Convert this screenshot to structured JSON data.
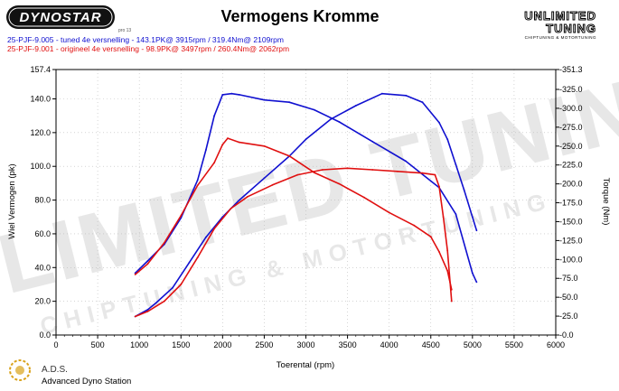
{
  "header": {
    "title": "Vermogens Kromme",
    "brand_left": "DYNOSTAR",
    "brand_left_small": "pro 13",
    "brand_right_line1": "UNLIMITED",
    "brand_right_line2": "TUNING",
    "brand_right_sub": "CHIPTUNING & MOTORTUNING",
    "run1": "25-PJF-9.005 - tuned 4e versnelling  - 143.1PK@ 3915rpm / 319.4Nm@ 2109rpm",
    "run2": "25-PJF-9.001 - origineel 4e versnelling  - 98.9PK@ 3497rpm / 260.4Nm@ 2062rpm"
  },
  "footer": {
    "ads": "A.D.S.",
    "station": "Advanced Dyno Station"
  },
  "watermark": {
    "line1": "UNLIMITED TUNING",
    "line2": "CHIPTUNING & MOTORTUNING"
  },
  "colors": {
    "tuned": "#1010d0",
    "original": "#e01010",
    "axis": "#000000",
    "grid": "#bbbbbb"
  },
  "chart_data": {
    "type": "line",
    "title": "Vermogens Kromme",
    "xlabel": "Toerental (rpm)",
    "ylabel": "Wiel Vermogen (pk)",
    "y2label": "Torque (Nm)",
    "xlim": [
      0,
      6000
    ],
    "ylim": [
      0,
      157.4
    ],
    "y2lim": [
      0,
      351.3
    ],
    "x_ticks": [
      0,
      500,
      1000,
      1500,
      2000,
      2500,
      3000,
      3500,
      4000,
      4500,
      5000,
      5500,
      6000
    ],
    "x_tick_labels": [
      "0",
      "500",
      "1000",
      "1500",
      "2000",
      "2500",
      "3000",
      "3500",
      "4000",
      "4500",
      "5000",
      "5500",
      "6000"
    ],
    "y_ticks": [
      0,
      20,
      40,
      60,
      80,
      100,
      120,
      140,
      157.4
    ],
    "y_tick_labels": [
      "0.0",
      "20.0",
      "40.0",
      "60.0",
      "80.0",
      "100.0",
      "120.0",
      "140.0",
      "157.4"
    ],
    "y2_ticks": [
      0,
      25,
      50,
      75,
      100,
      125,
      150,
      175,
      200,
      225,
      250,
      275,
      300,
      325,
      351.3
    ],
    "y2_tick_labels": [
      "-0.0",
      "-25.0",
      "-50.0",
      "-75.0",
      "-100.0",
      "-125.0",
      "-150.0",
      "-175.0",
      "-200.0",
      "-225.0",
      "-250.0",
      "-275.0",
      "-300.0",
      "-325.0",
      "-351.3"
    ],
    "grid": true,
    "series": [
      {
        "name": "25-PJF-9.005 - tuned 4e versnelling",
        "quantity": "power",
        "axis": "left",
        "color": "#1010d0",
        "x": [
          950,
          1100,
          1200,
          1400,
          1600,
          1800,
          2000,
          2200,
          2500,
          2800,
          3000,
          3300,
          3600,
          3915,
          4200,
          4400,
          4600,
          4700,
          4800,
          4900,
          5000,
          5050
        ],
        "y": [
          11,
          15,
          19,
          28,
          43,
          58,
          70,
          80,
          93,
          106,
          116,
          128,
          136,
          143.1,
          142,
          138,
          126,
          116,
          101,
          86,
          70,
          62
        ]
      },
      {
        "name": "25-PJF-9.005 - tuned 4e versnelling",
        "quantity": "torque",
        "axis": "right",
        "color": "#1010d0",
        "x": [
          950,
          1100,
          1300,
          1500,
          1700,
          1800,
          1900,
          2000,
          2109,
          2200,
          2500,
          2800,
          3100,
          3400,
          3800,
          4200,
          4600,
          4800,
          5000,
          5050
        ],
        "y": [
          82,
          98,
          120,
          155,
          205,
          245,
          290,
          318,
          319.4,
          318,
          311,
          308,
          298,
          282,
          256,
          230,
          195,
          160,
          82,
          70
        ]
      },
      {
        "name": "25-PJF-9.001 - origineel 4e versnelling",
        "quantity": "power",
        "axis": "left",
        "color": "#e01010",
        "x": [
          950,
          1100,
          1300,
          1500,
          1700,
          1900,
          2100,
          2300,
          2600,
          2900,
          3200,
          3497,
          3800,
          4100,
          4400,
          4550,
          4600,
          4650,
          4700,
          4750
        ],
        "y": [
          11,
          14,
          20,
          30,
          46,
          63,
          75,
          82,
          89,
          95,
          98,
          98.9,
          98,
          97,
          96,
          95,
          88,
          70,
          50,
          20
        ]
      },
      {
        "name": "25-PJF-9.001 - origineel 4e versnelling",
        "quantity": "torque",
        "axis": "right",
        "color": "#e01010",
        "x": [
          950,
          1100,
          1300,
          1500,
          1700,
          1900,
          2000,
          2062,
          2200,
          2500,
          2800,
          3100,
          3400,
          3700,
          4000,
          4300,
          4500,
          4600,
          4700,
          4750
        ],
        "y": [
          80,
          94,
          122,
          158,
          198,
          228,
          252,
          260.4,
          255,
          250,
          237,
          215,
          200,
          182,
          162,
          145,
          130,
          110,
          85,
          60
        ]
      }
    ]
  }
}
